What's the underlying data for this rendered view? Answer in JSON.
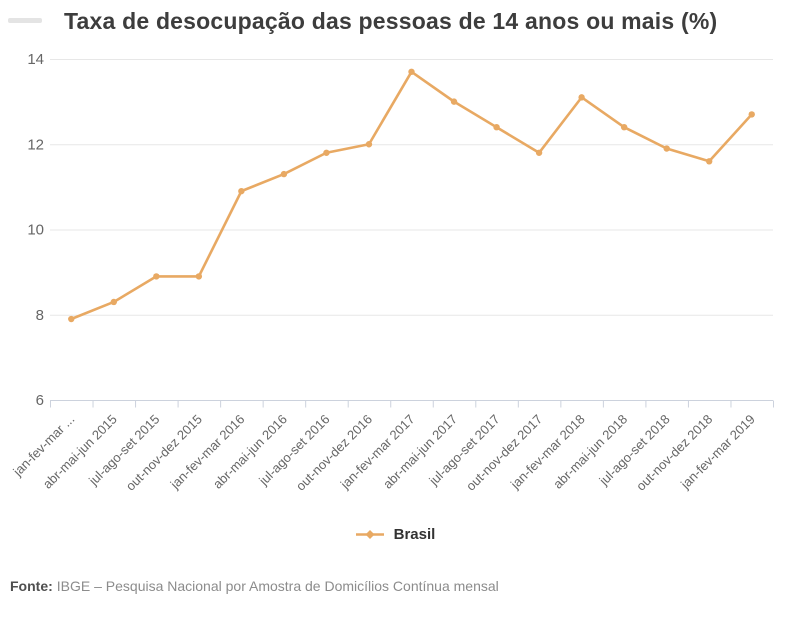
{
  "chart_data": {
    "type": "line",
    "title": "Taxa de desocupação das pessoas de 14 anos ou mais (%)",
    "categories": [
      "jan-fev-mar ...",
      "abr-mai-jun 2015",
      "jul-ago-set 2015",
      "out-nov-dez 2015",
      "jan-fev-mar 2016",
      "abr-mai-jun 2016",
      "jul-ago-set 2016",
      "out-nov-dez 2016",
      "jan-fev-mar 2017",
      "abr-mai-jun 2017",
      "jul-ago-set 2017",
      "out-nov-dez 2017",
      "jan-fev-mar 2018",
      "abr-mai-jun 2018",
      "jul-ago-set 2018",
      "out-nov-dez 2018",
      "jan-fev-mar 2019"
    ],
    "series": [
      {
        "name": "Brasil",
        "values": [
          7.9,
          8.3,
          8.9,
          8.9,
          10.9,
          11.3,
          11.8,
          12.0,
          13.7,
          13.0,
          12.4,
          11.8,
          13.1,
          12.4,
          11.9,
          11.6,
          12.7
        ]
      }
    ],
    "xlabel": "",
    "ylabel": "",
    "ylim": [
      6,
      14
    ],
    "yticks": [
      6,
      8,
      10,
      12,
      14
    ],
    "grid": "horizontal-only",
    "legend_position": "bottom-center",
    "marker": "circle"
  },
  "footer": {
    "source_label": "Fonte:",
    "source_text": "IBGE – Pesquisa Nacional por Amostra de Domicílios Contínua mensal"
  },
  "colors": {
    "series": "#e8a963",
    "grid": "#e7e7e7",
    "axis": "#ccd2dd",
    "tick_label": "#666666",
    "title": "#3d3d3d",
    "legend_text": "#333333",
    "footer_label": "#4f4f4f",
    "footer_text": "#8c8c8c"
  }
}
